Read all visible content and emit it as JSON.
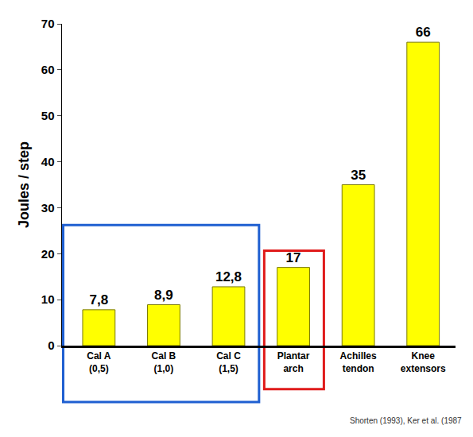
{
  "chart_data": {
    "type": "bar",
    "categories": [
      "Cal A (0,5)",
      "Cal B (1,0)",
      "Cal C (1,5)",
      "Plantar arch",
      "Achilles tendon",
      "Knee extensors"
    ],
    "values": [
      7.8,
      8.9,
      12.8,
      17,
      35,
      66
    ],
    "value_labels": [
      "7,8",
      "8,9",
      "12,8",
      "17",
      "35",
      "66"
    ],
    "color": "#ffff00",
    "ylabel": "Joules / step",
    "ylim": [
      0,
      70
    ],
    "yticks": [
      0,
      10,
      20,
      30,
      40,
      50,
      60,
      70
    ],
    "grid": false,
    "data_labels": true,
    "annotations": [
      {
        "text": "Shorten (1993), Ker et al. (1987"
      }
    ]
  }
}
